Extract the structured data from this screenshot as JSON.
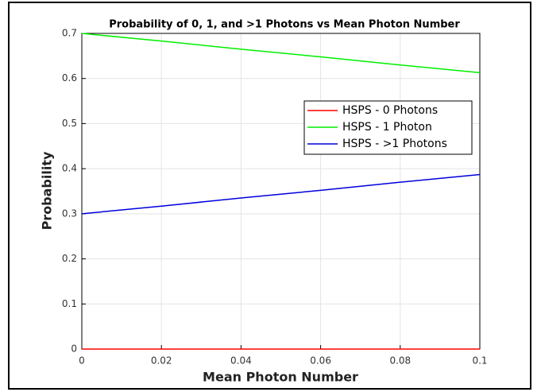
{
  "chart_data": {
    "type": "line",
    "title": "Probability of 0, 1, and >1 Photons vs Mean Photon Number",
    "x_label": "Mean Photon Number",
    "y_label": "Probability",
    "x": [
      0,
      0.02,
      0.04,
      0.06,
      0.08,
      0.1
    ],
    "series": [
      {
        "name": "HSPS - 0 Photons",
        "color": "#ff0000",
        "values": [
          0,
          0,
          0,
          0,
          0,
          0
        ]
      },
      {
        "name": "HSPS - 1 Photon",
        "color": "#00ee00",
        "values": [
          0.7,
          0.683,
          0.665,
          0.648,
          0.63,
          0.613
        ]
      },
      {
        "name": "HSPS - >1 Photons",
        "color": "#0000dd",
        "values": [
          0.3,
          0.317,
          0.335,
          0.352,
          0.37,
          0.387
        ]
      }
    ],
    "xlim": [
      0,
      0.1
    ],
    "xticks": [
      0,
      0.02,
      0.04,
      0.06,
      0.08,
      0.1
    ],
    "ylim": [
      0,
      0.7
    ],
    "yticks": [
      0,
      0.1,
      0.2,
      0.3,
      0.4,
      0.5,
      0.6,
      0.7
    ],
    "grid": true,
    "legend_location": "northeast"
  }
}
